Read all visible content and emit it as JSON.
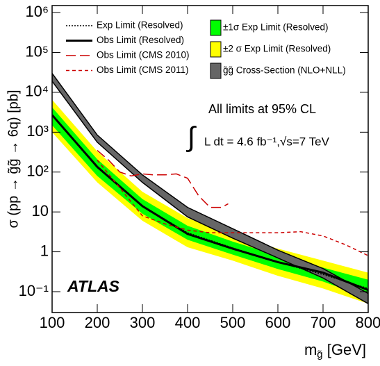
{
  "chart_data": {
    "type": "limit-plot",
    "y_label": "σ (pp → g̃g̃ → 6q) [pb]",
    "x_label": {
      "main": "m",
      "sub": "g̃",
      "unit": "[GeV]"
    },
    "annotations": {
      "cl": "All limits at 95% CL",
      "integral_sign": "∫",
      "lumi": "L dt = 4.6 fb⁻¹,√s=7 TeV",
      "experiment": "ATLAS"
    },
    "xlim": [
      100,
      800
    ],
    "xticks": [
      100,
      200,
      300,
      400,
      500,
      600,
      700,
      800
    ],
    "ylim": [
      0.03,
      1500000
    ],
    "log_y": true,
    "yticks": [
      {
        "value": 1000000,
        "label": "10⁶"
      },
      {
        "value": 100000,
        "label": "10⁵"
      },
      {
        "value": 10000,
        "label": "10⁴"
      },
      {
        "value": 1000,
        "label": "10³"
      },
      {
        "value": 100,
        "label": "10²"
      },
      10,
      1,
      {
        "value": 0.1,
        "label": "10⁻¹"
      }
    ],
    "series": [
      {
        "name": "±2 σ Exp Limit (Resolved)",
        "kind": "band",
        "color": "#ffff00",
        "x": [
          100,
          200,
          300,
          400,
          500,
          600,
          700,
          800
        ],
        "lower": [
          1000,
          55,
          6,
          1.3,
          0.6,
          0.25,
          0.12,
          0.05
        ],
        "upper": [
          6500,
          330,
          32,
          7,
          2.6,
          1.2,
          0.6,
          0.3
        ]
      },
      {
        "name": "±1σ Exp Limit (Resolved)",
        "kind": "band",
        "color": "#00ff00",
        "x": [
          100,
          200,
          300,
          400,
          500,
          600,
          700,
          800
        ],
        "lower": [
          1500,
          80,
          9,
          2,
          0.85,
          0.37,
          0.18,
          0.07
        ],
        "upper": [
          4200,
          210,
          21,
          4.5,
          1.8,
          0.8,
          0.4,
          0.2
        ]
      },
      {
        "name": "g̃g̃ Cross-Section (NLO+NLL)",
        "kind": "band",
        "color": "#666666",
        "x": [
          100,
          200,
          300,
          400,
          500,
          600,
          700,
          800
        ],
        "lower": [
          19000,
          560,
          55,
          7.5,
          2.2,
          0.7,
          0.22,
          0.05
        ],
        "upper": [
          30000,
          850,
          85,
          13,
          3.8,
          1.1,
          0.38,
          0.09
        ]
      },
      {
        "name": "Exp Limit (Resolved)",
        "kind": "line",
        "style": "dotted",
        "color": "#000000",
        "x": [
          100,
          200,
          300,
          400,
          500,
          600,
          700,
          800
        ],
        "values": [
          2600,
          130,
          14,
          3,
          1.25,
          0.55,
          0.27,
          0.12
        ]
      },
      {
        "name": "Obs Limit (Resolved)",
        "kind": "line",
        "style": "solid",
        "color": "#000000",
        "x": [
          100,
          200,
          300,
          400,
          500,
          600,
          700,
          800
        ],
        "values": [
          2700,
          135,
          14,
          2.8,
          1.2,
          0.55,
          0.3,
          0.11
        ]
      },
      {
        "name": "Obs Limit (CMS 2010)",
        "kind": "line",
        "style": "dashed",
        "color": "#cc0000",
        "x": [
          200,
          225,
          250,
          275,
          300,
          325,
          350,
          375,
          400,
          425,
          450,
          475,
          490
        ],
        "values": [
          350,
          200,
          100,
          80,
          90,
          85,
          85,
          90,
          70,
          25,
          13,
          13,
          16
        ]
      },
      {
        "name": "Obs Limit (CMS 2011)",
        "kind": "line",
        "style": "short-dashed",
        "color": "#cc0000",
        "x": [
          200,
          250,
          300,
          350,
          400,
          450,
          500,
          550,
          600,
          650,
          700,
          750,
          800
        ],
        "values": [
          200,
          40,
          8,
          5,
          3.5,
          3,
          3,
          3,
          3,
          3.2,
          2.5,
          1.5,
          0.8
        ]
      }
    ]
  }
}
